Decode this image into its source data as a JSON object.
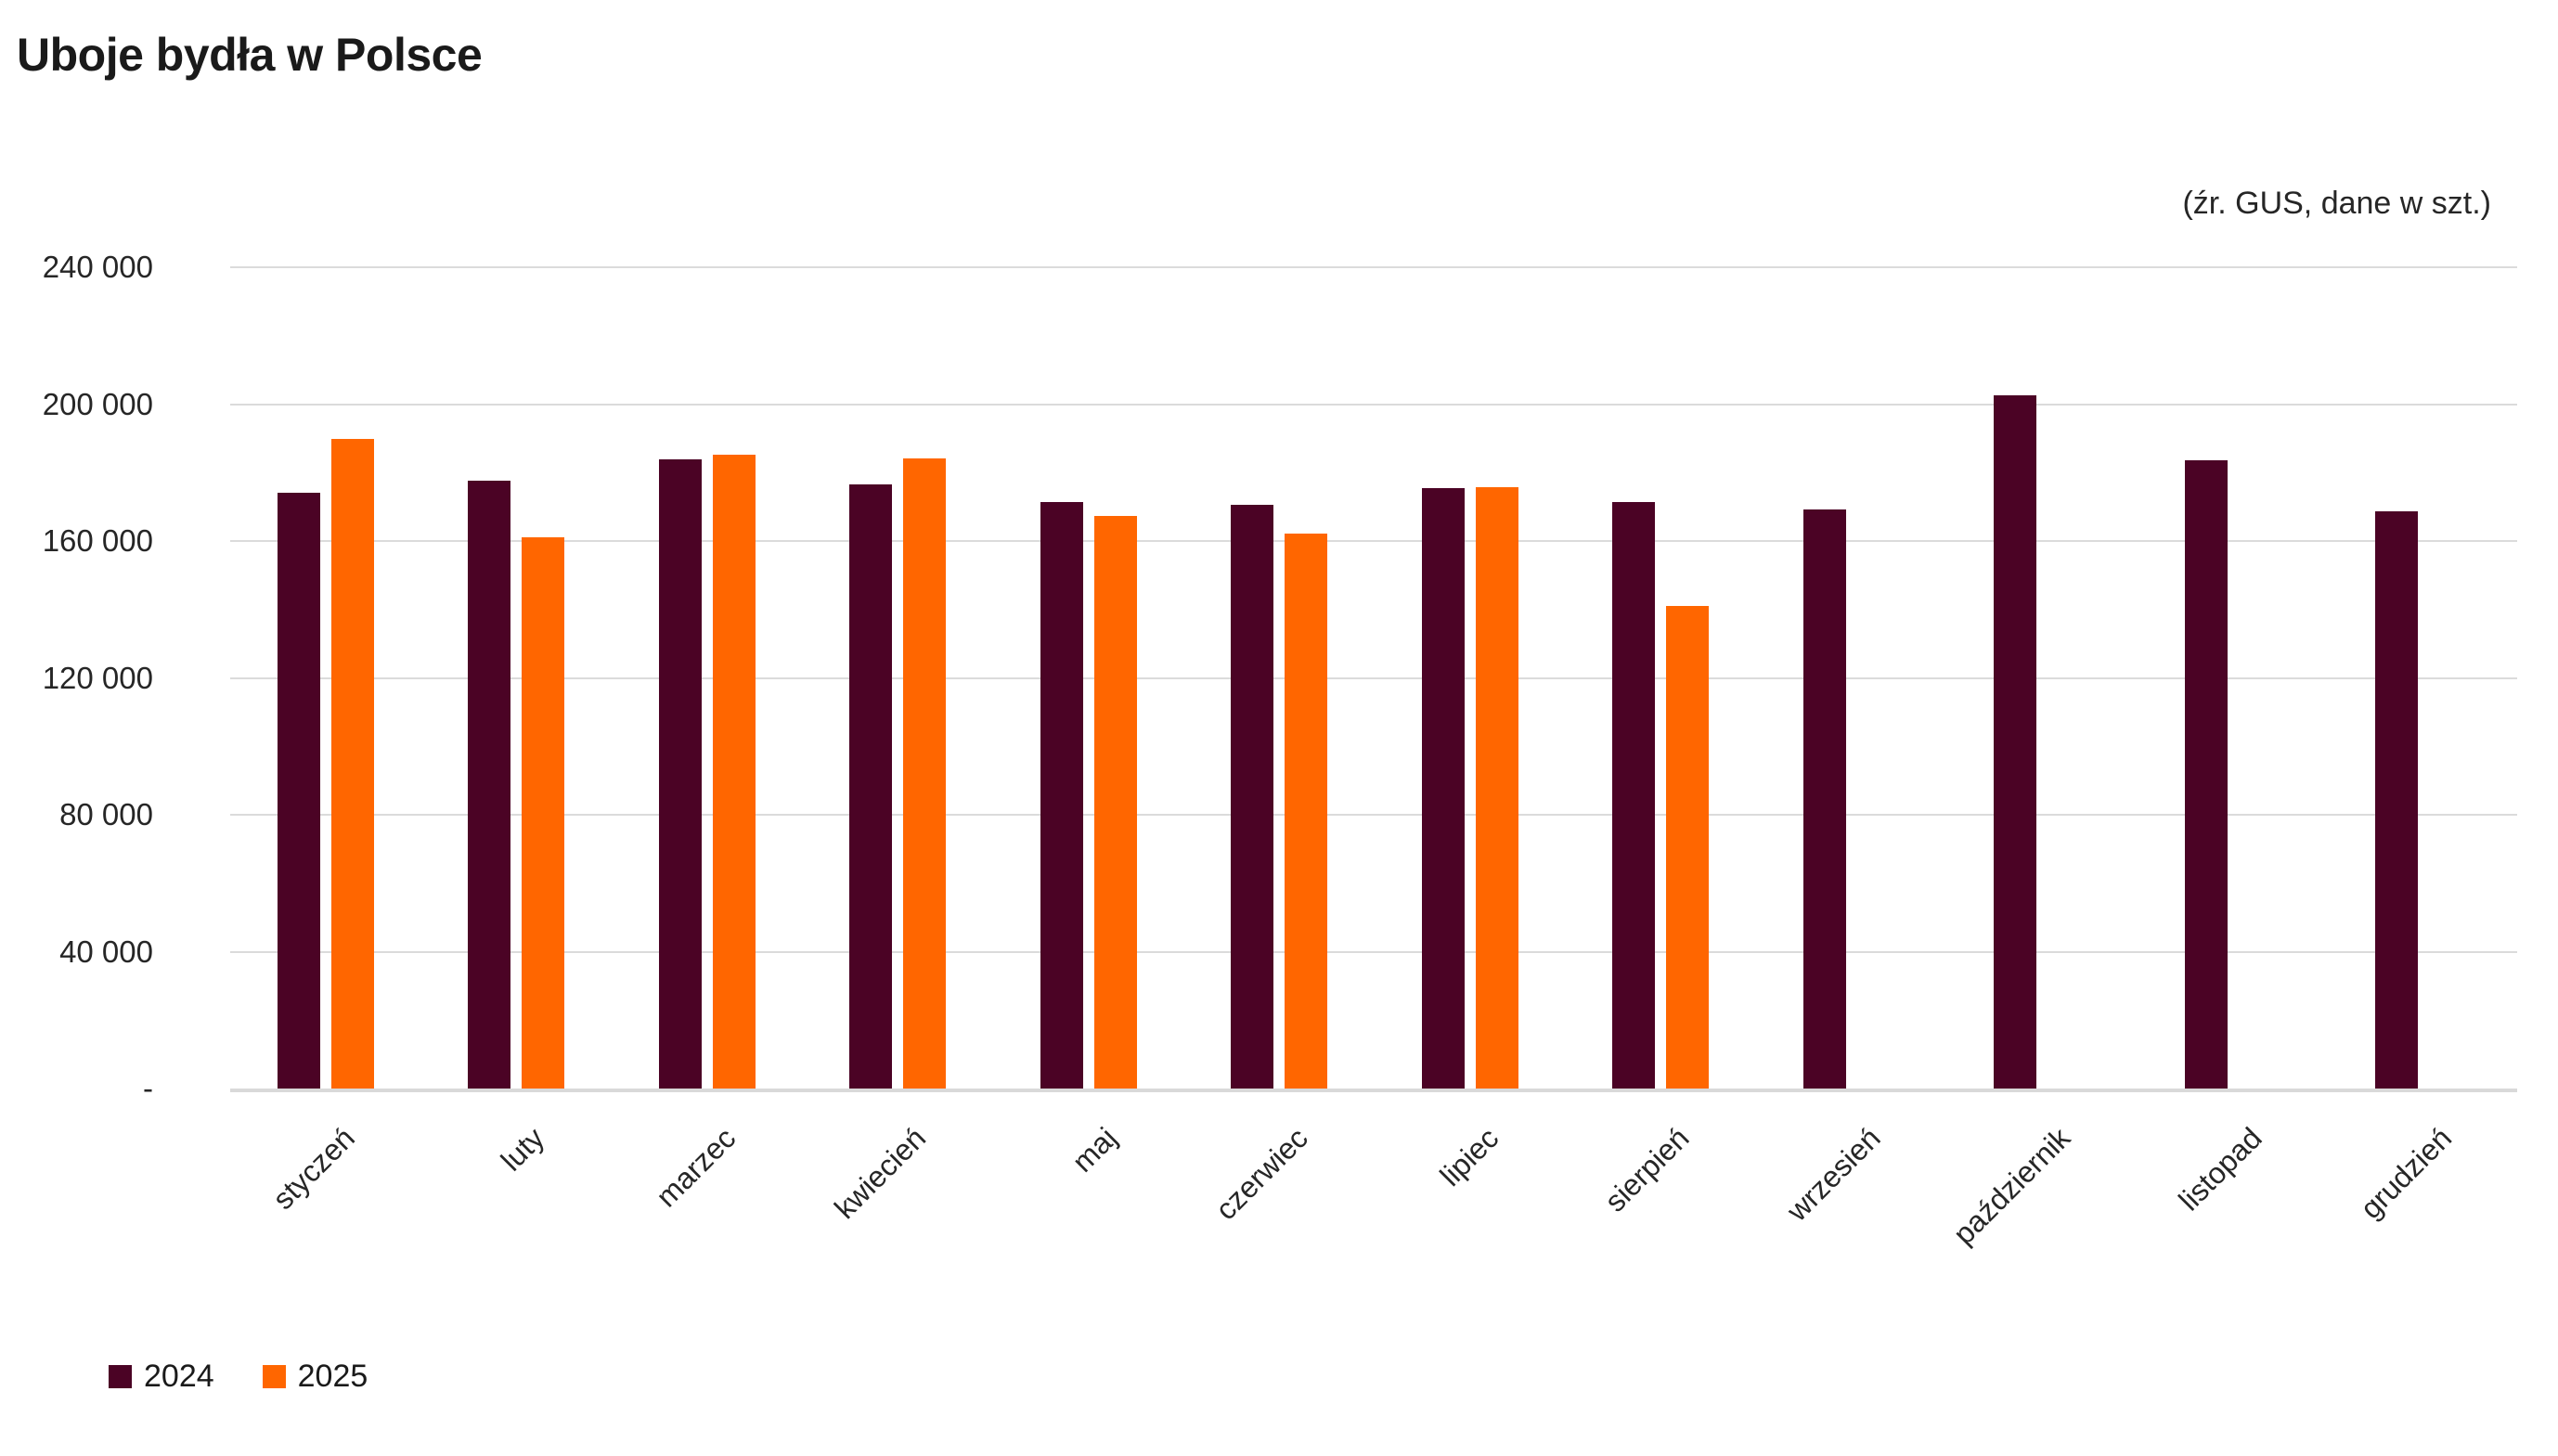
{
  "page": {
    "title": "Uboje bydła w Polsce",
    "source_note": "(źr. GUS, dane w szt.)"
  },
  "colors": {
    "series_2024": "#4B0325",
    "series_2025": "#FF6600",
    "gridline": "#DBDBDB",
    "axis_line": "#D9D9D9",
    "title_text": "#1A1A1A",
    "axis_text": "#262626"
  },
  "chart_data": {
    "type": "bar",
    "title": "Uboje bydła w Polsce",
    "source_note": "(źr. GUS, dane w szt.)",
    "categories": [
      "styczeń",
      "luty",
      "marzec",
      "kwiecień",
      "maj",
      "czerwiec",
      "lipiec",
      "sierpień",
      "wrzesień",
      "październik",
      "listopad",
      "grudzień"
    ],
    "series": [
      {
        "name": "2024",
        "color": "#4B0325",
        "values": [
          174000,
          177500,
          183800,
          176600,
          171400,
          170700,
          175500,
          171500,
          169300,
          202500,
          183500,
          168800
        ]
      },
      {
        "name": "2025",
        "color": "#FF6600",
        "values": [
          189700,
          161000,
          185300,
          184200,
          167300,
          162200,
          175800,
          141000,
          null,
          null,
          null,
          null
        ]
      }
    ],
    "ylabel": "",
    "xlabel": "",
    "ylim": [
      0,
      240000
    ],
    "ytick_step": 40000,
    "ytick_labels": [
      "-",
      "40 000",
      "80 000",
      "120 000",
      "160 000",
      "200 000",
      "240 000"
    ],
    "grid": "horizontal",
    "legend_position": "bottom-left"
  }
}
